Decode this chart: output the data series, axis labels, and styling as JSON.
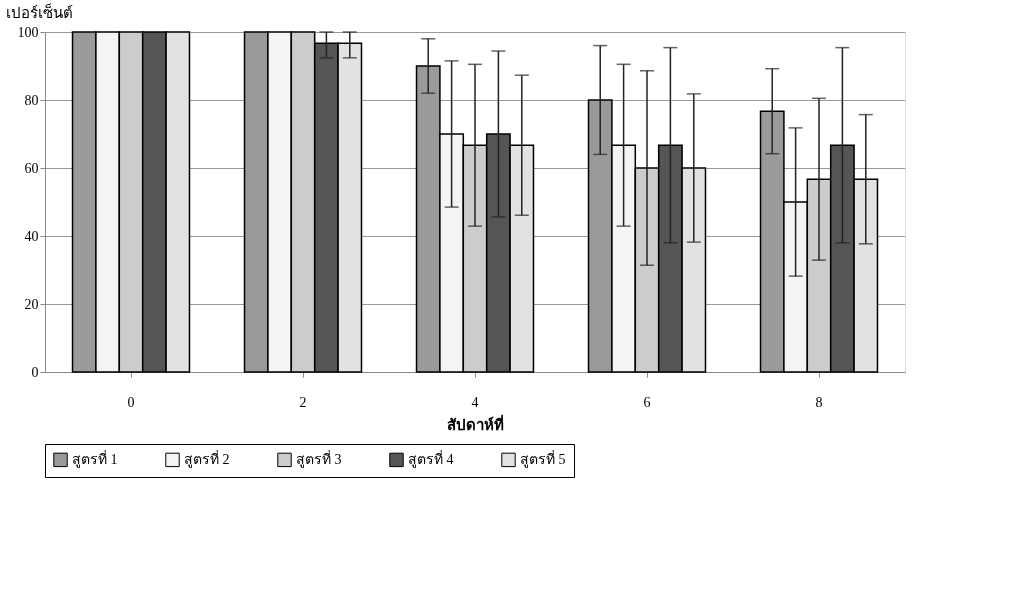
{
  "chart_data": {
    "type": "bar",
    "xlabel": "สัปดาห์ที่",
    "ylabel": "เปอร์เซ็นต์",
    "categories": [
      "0",
      "2",
      "4",
      "6",
      "8"
    ],
    "series": [
      {
        "name": "สูตรที่ 1",
        "color": "#9a9a9a",
        "values": [
          100,
          100,
          90,
          80,
          76.7
        ],
        "errors": [
          null,
          null,
          8,
          16,
          12.5
        ]
      },
      {
        "name": "สูตรที่ 2",
        "color": "#f4f4f4",
        "values": [
          100,
          100,
          70,
          66.7,
          50
        ],
        "errors": [
          null,
          null,
          21.5,
          23.8,
          21.8
        ]
      },
      {
        "name": "สูตรที่ 3",
        "color": "#cccccc",
        "values": [
          100,
          100,
          66.7,
          60,
          56.7
        ],
        "errors": [
          null,
          null,
          23.8,
          28.6,
          23.8
        ]
      },
      {
        "name": "สูตรที่ 4",
        "color": "#555555",
        "values": [
          100,
          96.7,
          70,
          66.7,
          66.7
        ],
        "errors": [
          null,
          [
            92.4,
            100
          ],
          24.4,
          28.7,
          28.7
        ]
      },
      {
        "name": "สูตรที่ 5",
        "color": "#e2e2e2",
        "values": [
          100,
          96.7,
          66.7,
          60,
          56.7
        ],
        "errors": [
          null,
          [
            92.4,
            100
          ],
          20.6,
          21.8,
          19
        ]
      }
    ],
    "ylim": [
      0,
      100
    ],
    "yticks": [
      0,
      20,
      40,
      60,
      80,
      100
    ],
    "grid": "y",
    "legend": "bottom"
  }
}
